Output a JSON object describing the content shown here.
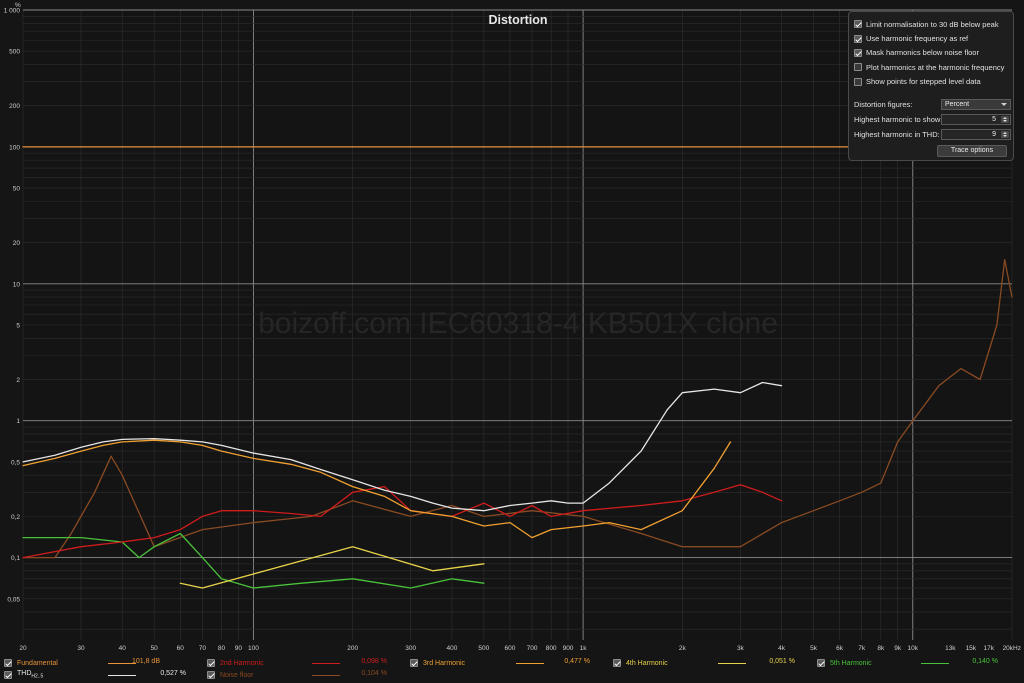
{
  "chart_data": {
    "type": "line",
    "title": "Distortion",
    "watermark": "boizoff.com IEC60318-4 KB501X clone",
    "y_unit_label": "%",
    "x_unit_label": "kHz",
    "x_scale": "log",
    "y_scale": "log",
    "xlim": [
      20,
      20000
    ],
    "ylim": [
      0.025,
      1000
    ],
    "grid": true,
    "legend_placement": "bottom",
    "y_ticks": [
      {
        "value": 1000,
        "label": "1 000"
      },
      {
        "value": 500,
        "label": "500"
      },
      {
        "value": 200,
        "label": "200"
      },
      {
        "value": 100,
        "label": "100"
      },
      {
        "value": 50,
        "label": "50"
      },
      {
        "value": 20,
        "label": "20"
      },
      {
        "value": 10,
        "label": "10"
      },
      {
        "value": 5,
        "label": "5"
      },
      {
        "value": 2,
        "label": "2"
      },
      {
        "value": 1,
        "label": "1"
      },
      {
        "value": 0.5,
        "label": "0,5"
      },
      {
        "value": 0.2,
        "label": "0,2"
      },
      {
        "value": 0.1,
        "label": "0,1"
      },
      {
        "value": 0.05,
        "label": "0,05"
      }
    ],
    "x_ticks": [
      {
        "value": 20,
        "label": "20"
      },
      {
        "value": 30,
        "label": "30"
      },
      {
        "value": 40,
        "label": "40"
      },
      {
        "value": 50,
        "label": "50"
      },
      {
        "value": 60,
        "label": "60"
      },
      {
        "value": 70,
        "label": "70"
      },
      {
        "value": 80,
        "label": "80"
      },
      {
        "value": 90,
        "label": "90"
      },
      {
        "value": 100,
        "label": "100"
      },
      {
        "value": 200,
        "label": "200"
      },
      {
        "value": 300,
        "label": "300"
      },
      {
        "value": 400,
        "label": "400"
      },
      {
        "value": 500,
        "label": "500"
      },
      {
        "value": 600,
        "label": "600"
      },
      {
        "value": 700,
        "label": "700"
      },
      {
        "value": 800,
        "label": "800"
      },
      {
        "value": 900,
        "label": "900"
      },
      {
        "value": 1000,
        "label": "1k"
      },
      {
        "value": 2000,
        "label": "2k"
      },
      {
        "value": 3000,
        "label": "3k"
      },
      {
        "value": 4000,
        "label": "4k"
      },
      {
        "value": 5000,
        "label": "5k"
      },
      {
        "value": 6000,
        "label": "6k"
      },
      {
        "value": 7000,
        "label": "7k"
      },
      {
        "value": 8000,
        "label": "8k"
      },
      {
        "value": 9000,
        "label": "9k"
      },
      {
        "value": 10000,
        "label": "10k"
      },
      {
        "value": 13000,
        "label": "13k"
      },
      {
        "value": 15000,
        "label": "15k"
      },
      {
        "value": 17000,
        "label": "17k"
      },
      {
        "value": 20000,
        "label": "20kHz"
      }
    ],
    "series": [
      {
        "name": "Fundamental",
        "color": "#e8923a",
        "legend_value": "101,8 dB",
        "checked": true,
        "x": [
          20
        ],
        "y": [
          100
        ],
        "flat_full_range": true
      },
      {
        "name": "THD",
        "name_sub": "H2..5",
        "color": "#e6e6e6",
        "legend_value": "0,527 %",
        "checked": true,
        "x": [
          20,
          25,
          30,
          35,
          40,
          50,
          60,
          70,
          80,
          100,
          130,
          160,
          200,
          250,
          300,
          350,
          400,
          500,
          600,
          700,
          800,
          900,
          1000,
          1200,
          1500,
          1800,
          2000,
          2500,
          3000,
          3500,
          4000
        ],
        "y": [
          0.5,
          0.56,
          0.64,
          0.7,
          0.73,
          0.74,
          0.72,
          0.7,
          0.66,
          0.58,
          0.52,
          0.44,
          0.37,
          0.31,
          0.28,
          0.25,
          0.23,
          0.22,
          0.24,
          0.25,
          0.26,
          0.25,
          0.25,
          0.35,
          0.6,
          1.2,
          1.6,
          1.7,
          1.6,
          1.9,
          1.8
        ]
      },
      {
        "name": "2nd Harmonic",
        "color": "#d01c1c",
        "legend_value": "0,098 %",
        "checked": true,
        "x": [
          20,
          30,
          40,
          50,
          60,
          70,
          80,
          100,
          130,
          160,
          200,
          250,
          300,
          400,
          500,
          600,
          700,
          800,
          1000,
          1500,
          2000,
          2500,
          3000,
          3500,
          4000
        ],
        "y": [
          0.1,
          0.12,
          0.13,
          0.14,
          0.16,
          0.2,
          0.22,
          0.22,
          0.21,
          0.2,
          0.3,
          0.33,
          0.22,
          0.2,
          0.25,
          0.2,
          0.24,
          0.2,
          0.22,
          0.24,
          0.26,
          0.3,
          0.34,
          0.3,
          0.26
        ]
      },
      {
        "name": "3rd Harmonic",
        "color": "#f0a030",
        "legend_value": "0,477 %",
        "checked": true,
        "x": [
          20,
          25,
          30,
          35,
          40,
          50,
          60,
          70,
          80,
          100,
          130,
          160,
          200,
          250,
          300,
          400,
          500,
          600,
          700,
          800,
          1000,
          1200,
          1500,
          2000,
          2500,
          2800
        ],
        "y": [
          0.47,
          0.53,
          0.6,
          0.66,
          0.7,
          0.72,
          0.7,
          0.66,
          0.6,
          0.53,
          0.48,
          0.42,
          0.33,
          0.28,
          0.22,
          0.2,
          0.17,
          0.18,
          0.14,
          0.16,
          0.17,
          0.18,
          0.16,
          0.22,
          0.45,
          0.7
        ]
      },
      {
        "name": "4th Harmonic",
        "color": "#e8d24a",
        "legend_value": "0,051 %",
        "checked": true,
        "x": [
          60,
          70,
          200,
          350,
          500
        ],
        "y": [
          0.065,
          0.06,
          0.12,
          0.08,
          0.09
        ]
      },
      {
        "name": "5th Harmonic",
        "color": "#49c23a",
        "legend_value": "0,140 %",
        "checked": true,
        "x": [
          20,
          30,
          40,
          45,
          50,
          60,
          70,
          80,
          100,
          140,
          200,
          300,
          400,
          500
        ],
        "y": [
          0.14,
          0.14,
          0.13,
          0.1,
          0.12,
          0.15,
          0.1,
          0.07,
          0.06,
          0.065,
          0.07,
          0.06,
          0.07,
          0.065
        ]
      },
      {
        "name": "Noise floor",
        "color": "#8a4a22",
        "legend_value": "0,104 %",
        "checked": true,
        "x": [
          20,
          25,
          28,
          33,
          37,
          40,
          50,
          70,
          100,
          150,
          200,
          300,
          400,
          500,
          700,
          1000,
          1500,
          2000,
          3000,
          4000,
          5000,
          6000,
          7000,
          8000,
          9000,
          10000,
          12000,
          14000,
          16000,
          18000,
          19000,
          20000
        ],
        "y": [
          0.1,
          0.1,
          0.15,
          0.3,
          0.55,
          0.4,
          0.12,
          0.16,
          0.18,
          0.2,
          0.26,
          0.2,
          0.24,
          0.2,
          0.22,
          0.2,
          0.15,
          0.12,
          0.12,
          0.18,
          0.22,
          0.26,
          0.3,
          0.35,
          0.7,
          1.0,
          1.8,
          2.4,
          2.0,
          5.0,
          15,
          8.0
        ]
      }
    ]
  },
  "options_panel": {
    "checkboxes": [
      {
        "label": "Limit normalisation to 30 dB below peak",
        "checked": true
      },
      {
        "label": "Use harmonic frequency as ref",
        "checked": true
      },
      {
        "label": "Mask harmonics below noise floor",
        "checked": true
      },
      {
        "label": "Plot harmonics at the harmonic frequency",
        "checked": false
      },
      {
        "label": "Show points for stepped level data",
        "checked": false
      }
    ],
    "distortion_figures_label": "Distortion figures:",
    "distortion_figures_value": "Percent",
    "highest_harmonic_show_label": "Highest harmonic to show:",
    "highest_harmonic_show_value": "5",
    "highest_harmonic_thd_label": "Highest harmonic in THD:",
    "highest_harmonic_thd_value": "9",
    "trace_options_label": "Trace options"
  }
}
